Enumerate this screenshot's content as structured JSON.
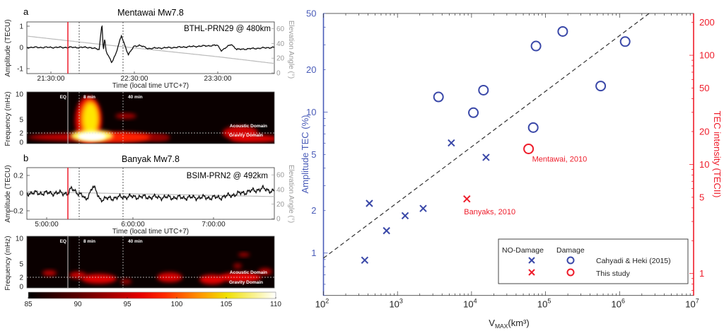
{
  "chart_data": [
    {
      "panel": "a",
      "type": "line",
      "title": "Mentawai Mw7.8",
      "annotation": "BTHL-PRN29 @ 480km",
      "xlabel": "Time (local time UTC+7)",
      "ylabel": "Amplitude (TECU)",
      "y2label": "Elevation Angle (°)",
      "xticks": [
        "21:30:00",
        "22:30:00",
        "23:30:00"
      ],
      "yticks": [
        "1",
        "0",
        "-1"
      ],
      "y2ticks": [
        "60",
        "40",
        "20",
        "0"
      ],
      "ylim": [
        -1.2,
        1.2
      ],
      "y2lim": [
        0,
        68
      ],
      "event_markers": {
        "eq": "21:42",
        "dotted": [
          "21:50",
          "22:22"
        ]
      },
      "series": [
        {
          "values_desc": "amplitude",
          "points": [
            [
              "21:13",
              0
            ],
            [
              "21:40",
              0
            ],
            [
              "21:58",
              0
            ],
            [
              "22:05",
              -0.1
            ],
            [
              "22:07",
              1.15
            ],
            [
              "22:08",
              -0.15
            ],
            [
              "22:09",
              0.4
            ],
            [
              "22:10",
              -0.2
            ],
            [
              "22:14",
              -0.7
            ],
            [
              "22:17",
              -0.3
            ],
            [
              "22:21",
              0.55
            ],
            [
              "22:26",
              -0.35
            ],
            [
              "22:30",
              0.05
            ],
            [
              "22:34",
              0.1
            ],
            [
              "22:40",
              -0.05
            ],
            [
              "23:00",
              0
            ],
            [
              "23:30",
              0.1
            ],
            [
              "23:33",
              -0.15
            ],
            [
              "23:40",
              0.15
            ],
            [
              "23:44",
              -0.1
            ],
            [
              "24:10",
              0
            ]
          ]
        },
        {
          "values_desc": "elevation",
          "points": [
            [
              "21:13",
              50
            ],
            [
              "22:00",
              40
            ],
            [
              "22:30",
              34
            ],
            [
              "23:30",
              22
            ],
            [
              "24:10",
              13
            ]
          ]
        }
      ]
    },
    {
      "panel": "a-spectrogram",
      "type": "heatmap",
      "ylabel": "Frequency (mHz)",
      "yticks": [
        "10",
        "5",
        "2",
        "0"
      ],
      "markers": [
        "EQ",
        "8 min",
        "40 min"
      ],
      "domain_labels": [
        "Acoustic Domain",
        "Gravity Domain"
      ]
    },
    {
      "panel": "b",
      "type": "line",
      "title": "Banyak Mw7.8",
      "annotation": "BSIM-PRN2 @ 492km",
      "xlabel": "Time (local time UTC+7)",
      "ylabel": "Amplitude (TECU)",
      "y2label": "Elevation Angle (°)",
      "xticks": [
        "5:00:00",
        "6:00:00",
        "7:00:00"
      ],
      "yticks": [
        "0.2",
        "0",
        "-0.2"
      ],
      "y2ticks": [
        "60",
        "40",
        "20",
        "0"
      ],
      "ylim": [
        -0.3,
        0.3
      ],
      "y2lim": [
        0,
        68
      ],
      "event_markers": {
        "eq": "5:15",
        "dotted": [
          "5:23",
          "5:55"
        ]
      },
      "series": [
        {
          "values_desc": "amplitude",
          "points": [
            [
              "4:46",
              0
            ],
            [
              "5:15",
              0
            ],
            [
              "5:17",
              0.05
            ],
            [
              "5:24",
              -0.02
            ],
            [
              "5:27",
              -0.08
            ],
            [
              "5:32",
              0.08
            ],
            [
              "5:37",
              -0.07
            ],
            [
              "5:55",
              -0.04
            ],
            [
              "6:30",
              -0.05
            ],
            [
              "7:00",
              -0.05
            ],
            [
              "7:30",
              0.05
            ],
            [
              "7:43",
              0
            ]
          ]
        },
        {
          "values_desc": "elevation",
          "points": [
            [
              "4:46",
              37
            ],
            [
              "6:00",
              34
            ],
            [
              "7:43",
              30
            ]
          ]
        }
      ]
    },
    {
      "panel": "b-spectrogram",
      "type": "heatmap",
      "ylabel": "Frequency (mHz)",
      "yticks": [
        "10",
        "5",
        "2",
        "0"
      ],
      "markers": [
        "EQ",
        "8 min",
        "40 min"
      ],
      "domain_labels": [
        "Acoustic Domain",
        "Gravity Domain"
      ],
      "colorbar_ticks": [
        "85",
        "90",
        "95",
        "100",
        "105",
        "110"
      ],
      "colorbar_range": [
        85,
        110
      ]
    },
    {
      "panel": "right",
      "type": "scatter",
      "xlabel": {
        "main": "V",
        "sub": "MAX",
        "unit": "(km³)"
      },
      "ylabel": "Amplitude TEC (%)",
      "y2label": "TEC intensity (TECII)",
      "xscale": "log",
      "yscale": "log",
      "xlim": [
        100,
        10000000
      ],
      "ylim": [
        0.5,
        50
      ],
      "y2lim": [
        0.63,
        241
      ],
      "xticks": [
        {
          "base": "10",
          "exp": "2",
          "v": 100
        },
        {
          "base": "10",
          "exp": "3",
          "v": 1000
        },
        {
          "base": "10",
          "exp": "4",
          "v": 10000
        },
        {
          "base": "10",
          "exp": "5",
          "v": 100000
        },
        {
          "base": "10",
          "exp": "6",
          "v": 1000000
        },
        {
          "base": "10",
          "exp": "7",
          "v": 10000000
        }
      ],
      "yticks": [
        "1",
        "2",
        "5",
        "10",
        "20",
        "50"
      ],
      "y2ticks": [
        "1",
        "5",
        "10",
        "20",
        "50",
        "100",
        "200"
      ],
      "colors": {
        "left_axis": "#4a5cb8",
        "right_axis": "#ee1c2a",
        "cahyadi": "#3a48a8",
        "this_study": "#ee1c2a"
      },
      "trend_line": {
        "style": "dashed",
        "from": [
          100,
          0.92
        ],
        "to": [
          2500000,
          50
        ]
      },
      "series": [
        {
          "name": "Cahyadi & Heki (2015)",
          "group": "NO-Damage",
          "marker": "x",
          "color": "#3a48a8",
          "points": [
            [
              361,
              0.89
            ],
            [
              417,
              2.25
            ],
            [
              711,
              1.44
            ],
            [
              1268,
              1.84
            ],
            [
              2223,
              2.07
            ],
            [
              5336,
              6.04
            ],
            [
              15700,
              4.77
            ]
          ]
        },
        {
          "name": "Cahyadi & Heki (2015)",
          "group": "Damage",
          "marker": "o",
          "color": "#3a48a8",
          "points": [
            [
              3580,
              12.8
            ],
            [
              10600,
              9.9
            ],
            [
              14500,
              14.3
            ],
            [
              68200,
              7.76
            ],
            [
              74300,
              29.4
            ],
            [
              170600,
              37.3
            ],
            [
              556000,
              15.3
            ],
            [
              1190000,
              31.6
            ]
          ]
        },
        {
          "name": "This study",
          "group": "NO-Damage",
          "marker": "x",
          "color": "#ee1c2a",
          "points": [
            [
              8650,
              2.42
            ]
          ],
          "labels": [
            "Banyaks, 2010"
          ]
        },
        {
          "name": "This study",
          "group": "Damage",
          "marker": "o",
          "color": "#ee1c2a",
          "points": [
            [
              59000,
              5.48
            ]
          ],
          "labels": [
            "Mentawai, 2010"
          ]
        }
      ],
      "legend": {
        "position": "bottom-right",
        "headers": [
          "NO-Damage",
          "Damage"
        ],
        "rows": [
          "Cahyadi & Heki (2015)",
          "This study"
        ]
      }
    }
  ]
}
